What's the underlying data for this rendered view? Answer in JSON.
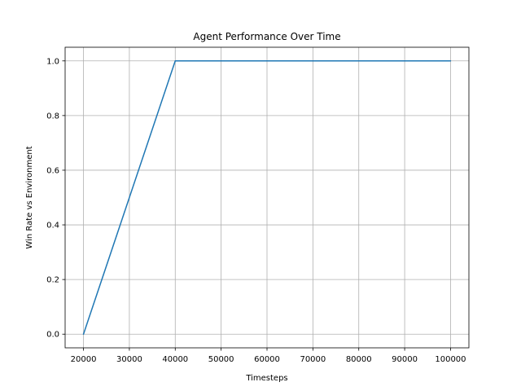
{
  "chart_data": {
    "type": "line",
    "title": "Agent Performance Over Time",
    "xlabel": "Timesteps",
    "ylabel": "Win Rate vs Environment",
    "xlim": [
      16000,
      104000
    ],
    "ylim": [
      -0.05,
      1.05
    ],
    "xticks": [
      20000,
      30000,
      40000,
      50000,
      60000,
      70000,
      80000,
      90000,
      100000
    ],
    "yticks": [
      0.0,
      0.2,
      0.4,
      0.6,
      0.8,
      1.0
    ],
    "ytick_labels": [
      "0.0",
      "0.2",
      "0.4",
      "0.6",
      "0.8",
      "1.0"
    ],
    "grid": true,
    "series": [
      {
        "color": "#1f77b4",
        "x": [
          20000,
          40000,
          50000,
          60000,
          70000,
          80000,
          90000,
          100000
        ],
        "y": [
          0.0,
          1.0,
          1.0,
          1.0,
          1.0,
          1.0,
          1.0,
          1.0
        ]
      }
    ]
  }
}
